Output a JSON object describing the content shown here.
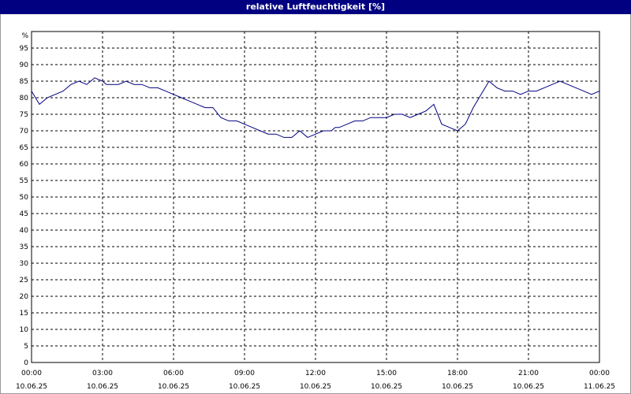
{
  "chart_data": {
    "type": "line",
    "title": "relative Luftfeuchtigkeit [%]",
    "y_unit": "%",
    "ylim": [
      0,
      100
    ],
    "y_ticks": [
      0,
      5,
      10,
      15,
      20,
      25,
      30,
      35,
      40,
      45,
      50,
      55,
      60,
      65,
      70,
      75,
      80,
      85,
      90,
      95
    ],
    "xlim": [
      "10.06.25 00:00",
      "11.06.25 00:00"
    ],
    "x_ticks": [
      {
        "time": "00:00",
        "date": "10.06.25"
      },
      {
        "time": "03:00",
        "date": "10.06.25"
      },
      {
        "time": "06:00",
        "date": "10.06.25"
      },
      {
        "time": "09:00",
        "date": "10.06.25"
      },
      {
        "time": "12:00",
        "date": "10.06.25"
      },
      {
        "time": "15:00",
        "date": "10.06.25"
      },
      {
        "time": "18:00",
        "date": "10.06.25"
      },
      {
        "time": "21:00",
        "date": "10.06.25"
      },
      {
        "time": "00:00",
        "date": "11.06.25"
      }
    ],
    "grid": true,
    "series": [
      {
        "color": "#000080",
        "x": [
          "00:00",
          "00:20",
          "00:40",
          "01:00",
          "01:20",
          "01:40",
          "02:00",
          "02:20",
          "02:40",
          "03:00",
          "03:10",
          "03:20",
          "03:40",
          "04:00",
          "04:20",
          "04:40",
          "05:00",
          "05:20",
          "05:40",
          "06:00",
          "06:20",
          "06:40",
          "07:00",
          "07:20",
          "07:40",
          "08:00",
          "08:20",
          "08:40",
          "09:00",
          "09:20",
          "09:40",
          "10:00",
          "10:20",
          "10:40",
          "11:00",
          "11:20",
          "11:40",
          "12:00",
          "12:20",
          "12:40",
          "12:50",
          "13:00",
          "13:20",
          "13:40",
          "14:00",
          "14:20",
          "14:40",
          "15:00",
          "15:20",
          "15:40",
          "16:00",
          "16:20",
          "16:40",
          "17:00",
          "17:20",
          "17:40",
          "18:00",
          "18:20",
          "18:40",
          "19:00",
          "19:20",
          "19:40",
          "20:00",
          "20:20",
          "20:40",
          "21:00",
          "21:20",
          "21:40",
          "22:00",
          "22:20",
          "22:40",
          "23:00",
          "23:20",
          "23:40",
          "24:00"
        ],
        "y": [
          82,
          78,
          80,
          81,
          82,
          84,
          85,
          84,
          86,
          85,
          84,
          84,
          84,
          85,
          84,
          84,
          83,
          83,
          82,
          81,
          80,
          79,
          78,
          77,
          77,
          74,
          73,
          73,
          72,
          71,
          70,
          69,
          69,
          68,
          68,
          70,
          68,
          69,
          70,
          70,
          71,
          71,
          72,
          73,
          73,
          74,
          74,
          74,
          75,
          75,
          74,
          75,
          76,
          78,
          72,
          71,
          70,
          72,
          77,
          81,
          85,
          83,
          82,
          82,
          81,
          82,
          82,
          83,
          84,
          85,
          84,
          83,
          82,
          81,
          82
        ]
      }
    ]
  }
}
